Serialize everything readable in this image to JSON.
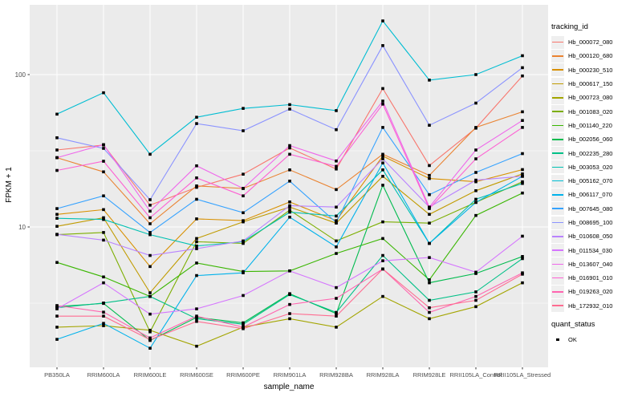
{
  "figure": {
    "panel_bg": "#EBEBEB",
    "grid_color": "#FFFFFF",
    "axis_text_color": "#4D4D4D",
    "point_color": "#000000",
    "legend_key_bg": "#EFEFEF"
  },
  "y_axis": {
    "title": "FPKM + 1",
    "tick_labels": [
      "100",
      "10"
    ],
    "tick_values": [
      100,
      10
    ],
    "minor_tick_values": [
      31.62,
      3.162
    ]
  },
  "x_axis": {
    "title": "sample_name"
  },
  "legend": {
    "tracking_title": "tracking_id",
    "quant_title": "quant_status",
    "ok_label": "OK"
  },
  "chart_data": {
    "type": "line",
    "title": "",
    "xlabel": "sample_name",
    "ylabel": "FPKM + 1",
    "y_scale": "log10",
    "ylim": [
      1.15,
      290
    ],
    "grid": true,
    "legend_position": "right",
    "marker": "black-square (quant_status OK)",
    "categories": [
      "PB350LA",
      "RRIM600LA",
      "RRIM600LE",
      "RRIM600SE",
      "RRIM600PE",
      "RRIM901LA",
      "RRIM928BA",
      "RRIM928LA",
      "RRIM928LE",
      "RRII105LA_Control",
      "RRII105LA_Stressed"
    ],
    "series": [
      {
        "name": "Hb_000072_080",
        "color": "#F8766D",
        "values": [
          32,
          34.5,
          13.9,
          18.2,
          22.2,
          33,
          24,
          81,
          25.3,
          44.5,
          98
        ]
      },
      {
        "name": "Hb_000120_680",
        "color": "#EA8331",
        "values": [
          28.5,
          23,
          10.5,
          18.6,
          17.9,
          23.7,
          17.6,
          30,
          21.8,
          45,
          57
        ]
      },
      {
        "name": "Hb_000230_510",
        "color": "#D89000",
        "values": [
          12.1,
          13,
          5.5,
          11.3,
          11,
          14.6,
          11,
          29.2,
          20.8,
          19.8,
          23.8
        ]
      },
      {
        "name": "Hb_000617_150",
        "color": "#C09B00",
        "values": [
          10.1,
          11.5,
          3.7,
          8.4,
          10.8,
          13.5,
          10.6,
          21.5,
          12.1,
          17.3,
          22.3
        ]
      },
      {
        "name": "Hb_000723_080",
        "color": "#A3A500",
        "values": [
          2.2,
          2.25,
          2.1,
          1.65,
          2.2,
          2.5,
          2.2,
          3.5,
          2.5,
          3.0,
          4.3
        ]
      },
      {
        "name": "Hb_001083_020",
        "color": "#7CAE00",
        "values": [
          8.9,
          9.2,
          2.05,
          8.0,
          7.8,
          12.9,
          8.1,
          10.8,
          10.6,
          14.5,
          19.8
        ]
      },
      {
        "name": "Hb_001140_220",
        "color": "#39B600",
        "values": [
          5.85,
          4.7,
          3.5,
          5.8,
          5.1,
          5.15,
          6.7,
          8.4,
          4.5,
          11.9,
          16.7
        ]
      },
      {
        "name": "Hb_002056_060",
        "color": "#00BB4E",
        "values": [
          3.0,
          3.15,
          1.8,
          2.55,
          2.35,
          3.65,
          2.7,
          18.8,
          4.3,
          4.95,
          6.4
        ]
      },
      {
        "name": "Hb_002235_280",
        "color": "#00C087",
        "values": [
          2.95,
          3.17,
          3.5,
          2.5,
          2.3,
          3.6,
          2.75,
          6.5,
          3.3,
          3.75,
          6.2
        ]
      },
      {
        "name": "Hb_003053_020",
        "color": "#00C0B2",
        "values": [
          11.4,
          11.2,
          8.9,
          7.5,
          8.0,
          12.5,
          11.8,
          23.7,
          7.8,
          15.2,
          19.3
        ]
      },
      {
        "name": "Hb_005162_070",
        "color": "#00BDD2",
        "values": [
          55,
          76,
          30,
          52.5,
          60,
          63.5,
          58,
          225,
          92,
          100,
          133
        ]
      },
      {
        "name": "Hb_006117_070",
        "color": "#00B2EB",
        "values": [
          1.83,
          2.33,
          1.6,
          4.8,
          5.0,
          11.6,
          7.4,
          26.3,
          7.8,
          14.5,
          21.5
        ]
      },
      {
        "name": "Hb_007645_080",
        "color": "#35A2FF",
        "values": [
          13.2,
          16,
          9.2,
          15.2,
          12.4,
          20,
          10.7,
          45,
          16.3,
          22.8,
          30.3
        ]
      },
      {
        "name": "Hb_008695_100",
        "color": "#8B93FF",
        "values": [
          38.5,
          32.8,
          15.1,
          47.7,
          42.8,
          59.4,
          43.5,
          155,
          46.5,
          65,
          111
        ]
      },
      {
        "name": "Hb_010608_050",
        "color": "#B983FF",
        "values": [
          8.95,
          8.2,
          6.5,
          7.2,
          8.1,
          13.8,
          13.5,
          28,
          13.5,
          20.3,
          21.5
        ]
      },
      {
        "name": "Hb_011534_030",
        "color": "#D575FE",
        "values": [
          2.9,
          4.3,
          2.68,
          2.9,
          3.55,
          5.15,
          4.0,
          6.0,
          6.3,
          5.05,
          8.7
        ]
      },
      {
        "name": "Hb_013607_040",
        "color": "#EF67EB",
        "values": [
          28.5,
          34.7,
          12.7,
          25.2,
          17.9,
          34.2,
          27.1,
          67,
          13.5,
          32,
          50
        ]
      },
      {
        "name": "Hb_016901_010",
        "color": "#FD61D3",
        "values": [
          23.5,
          27,
          11.5,
          21,
          16,
          30,
          25,
          64,
          13.2,
          28,
          45
        ]
      },
      {
        "name": "Hb_019263_020",
        "color": "#FF65B0",
        "values": [
          3.05,
          2.76,
          1.87,
          2.6,
          2.2,
          3.1,
          3.4,
          5.3,
          2.75,
          3.5,
          5.0
        ]
      },
      {
        "name": "Hb_172932_010",
        "color": "#FF6C91",
        "values": [
          2.6,
          2.6,
          1.82,
          2.4,
          2.15,
          2.7,
          2.6,
          5.3,
          2.95,
          3.3,
          4.9
        ]
      }
    ],
    "quant_status_legend": {
      "title": "quant_status",
      "items": [
        "OK"
      ]
    }
  }
}
